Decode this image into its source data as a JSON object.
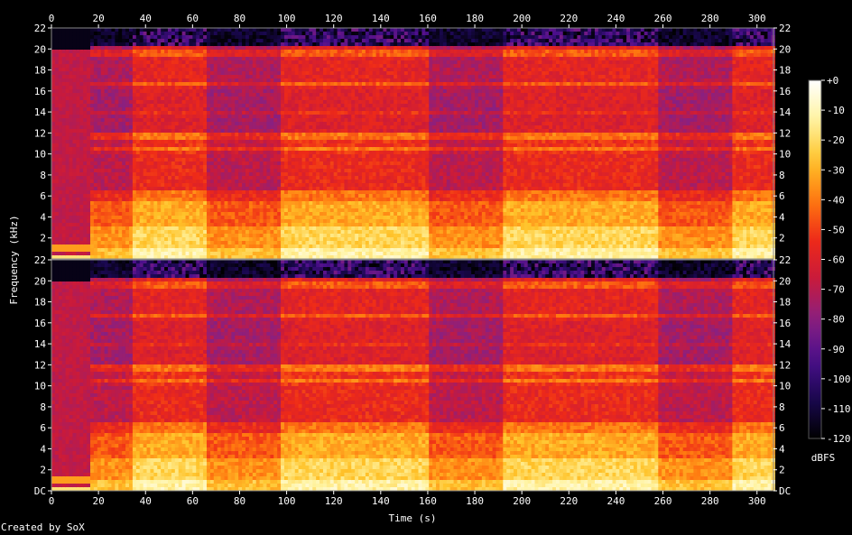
{
  "chart_data": {
    "type": "heatmap",
    "title": "",
    "xlabel": "Time (s)",
    "ylabel": "Frequency (kHz)",
    "x_ticks": [
      "0",
      "20",
      "40",
      "60",
      "80",
      "100",
      "120",
      "140",
      "160",
      "180",
      "200",
      "220",
      "240",
      "260",
      "280",
      "300"
    ],
    "xlim": [
      0,
      307
    ],
    "channels": [
      {
        "y_ticks": [
          "2",
          "4",
          "6",
          "8",
          "10",
          "12",
          "14",
          "16",
          "18",
          "20",
          "22"
        ],
        "ylim": [
          0,
          22
        ]
      },
      {
        "y_ticks": [
          "DC",
          "2",
          "4",
          "6",
          "8",
          "10",
          "12",
          "14",
          "16",
          "18",
          "20",
          "22"
        ],
        "ylim": [
          0,
          22
        ]
      }
    ],
    "colorbar": {
      "ticks": [
        "+0",
        "-10",
        "-20",
        "-30",
        "-40",
        "-50",
        "-60",
        "-70",
        "-80",
        "-90",
        "-100",
        "-110",
        "-120"
      ],
      "range": [
        -120,
        0
      ],
      "label": "dBFS"
    },
    "colormap_stops": [
      "#000000",
      "#1a0850",
      "#4b0f8c",
      "#8a2080",
      "#c81a3c",
      "#ee2a18",
      "#ff7a10",
      "#ffc32a",
      "#fff3a0",
      "#ffffff"
    ],
    "footer": "Created by SoX",
    "sections": [
      {
        "start_s": 0,
        "end_s": 17,
        "kind": "intro"
      },
      {
        "start_s": 17,
        "end_s": 35,
        "kind": "sparse"
      },
      {
        "start_s": 35,
        "end_s": 66,
        "kind": "dense"
      },
      {
        "start_s": 66,
        "end_s": 97,
        "kind": "sparse"
      },
      {
        "start_s": 97,
        "end_s": 161,
        "kind": "dense"
      },
      {
        "start_s": 161,
        "end_s": 192,
        "kind": "sparse"
      },
      {
        "start_s": 192,
        "end_s": 258,
        "kind": "dense"
      },
      {
        "start_s": 258,
        "end_s": 289,
        "kind": "sparse"
      },
      {
        "start_s": 289,
        "end_s": 307,
        "kind": "dense"
      }
    ]
  }
}
